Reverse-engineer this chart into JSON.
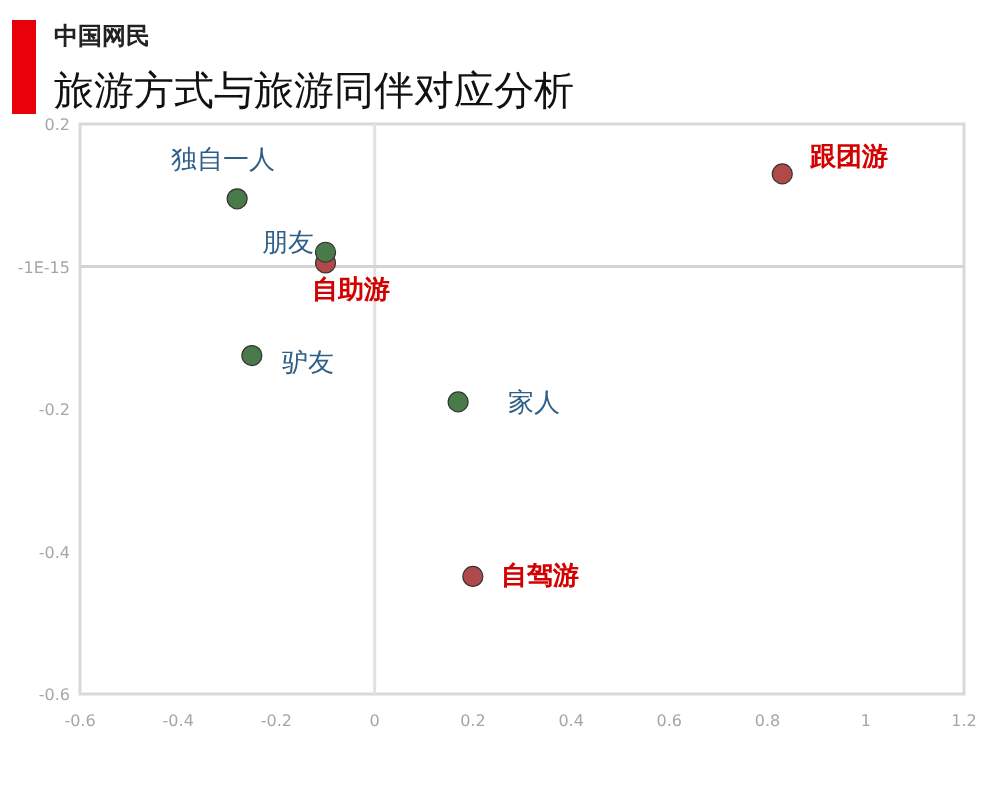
{
  "chart_data": {
    "type": "scatter",
    "subtitle": "中国网民",
    "title": "旅游方式与旅游同伴对应分析",
    "xlim": [
      -0.6,
      1.2
    ],
    "xticks": [
      -0.6,
      -0.4,
      -0.2,
      0,
      0.2,
      0.4,
      0.6,
      0.8,
      1,
      1.2
    ],
    "ylim": [
      -0.6,
      0.2
    ],
    "yticks": [
      -0.6,
      -0.4,
      -0.2,
      {
        "value": 0,
        "label": "-1E-15"
      },
      0.2
    ],
    "ref_lines": [
      {
        "axis": "x",
        "value": 0,
        "color": "#e2e2e2"
      },
      {
        "axis": "y",
        "value": 0,
        "color": "#d4d4d4"
      }
    ],
    "marker": "circle",
    "series": [
      {
        "color": "#b04a4a",
        "x": [
          0.83,
          -0.1,
          0.2
        ],
        "values": [
          0.13,
          0.005,
          -0.435
        ],
        "value_labels": [
          "跟团游",
          "自助游",
          "自驾游"
        ]
      },
      {
        "color": "#4a7a4a",
        "x": [
          -0.28,
          -0.1,
          -0.25,
          0.17
        ],
        "values": [
          0.095,
          0.02,
          -0.125,
          -0.19
        ],
        "value_labels": [
          "独自一人",
          "朋友",
          "驴友",
          "家人"
        ]
      }
    ]
  }
}
